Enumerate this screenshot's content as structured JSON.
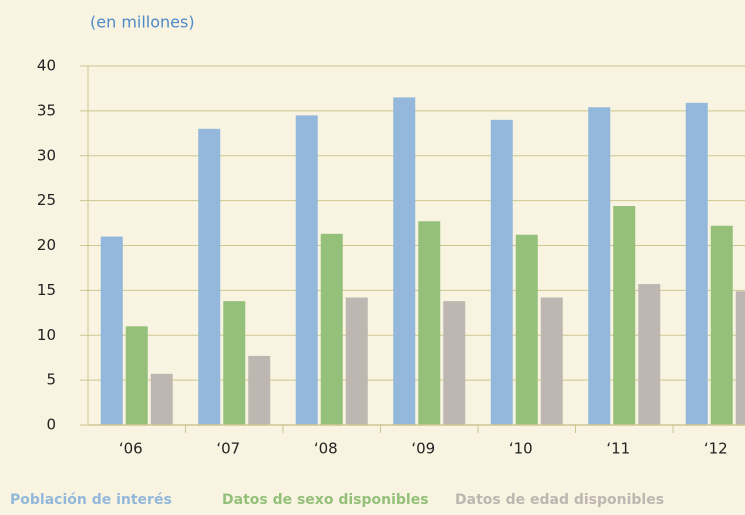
{
  "chart_data": {
    "type": "bar",
    "subtitle": "(en millones)",
    "categories": [
      "‘06",
      "‘07",
      "‘08",
      "‘09",
      "‘10",
      "‘11",
      "‘12"
    ],
    "series": [
      {
        "name": "Población de interés",
        "color": "#93b8db",
        "values": [
          21,
          33,
          34.5,
          36.5,
          34,
          35.4,
          35.9
        ]
      },
      {
        "name": "Datos de sexo disponibles",
        "color": "#94c07a",
        "values": [
          11,
          13.8,
          21.3,
          22.7,
          21.2,
          24.4,
          22.2
        ]
      },
      {
        "name": "Datos de edad disponibles",
        "color": "#beb6b1",
        "values": [
          5.7,
          7.7,
          14.2,
          13.8,
          14.2,
          15.7,
          14.9
        ]
      }
    ],
    "ylim": [
      0,
      40
    ],
    "yticks": [
      0,
      5,
      10,
      15,
      20,
      25,
      30,
      35,
      40
    ],
    "grid": true
  }
}
